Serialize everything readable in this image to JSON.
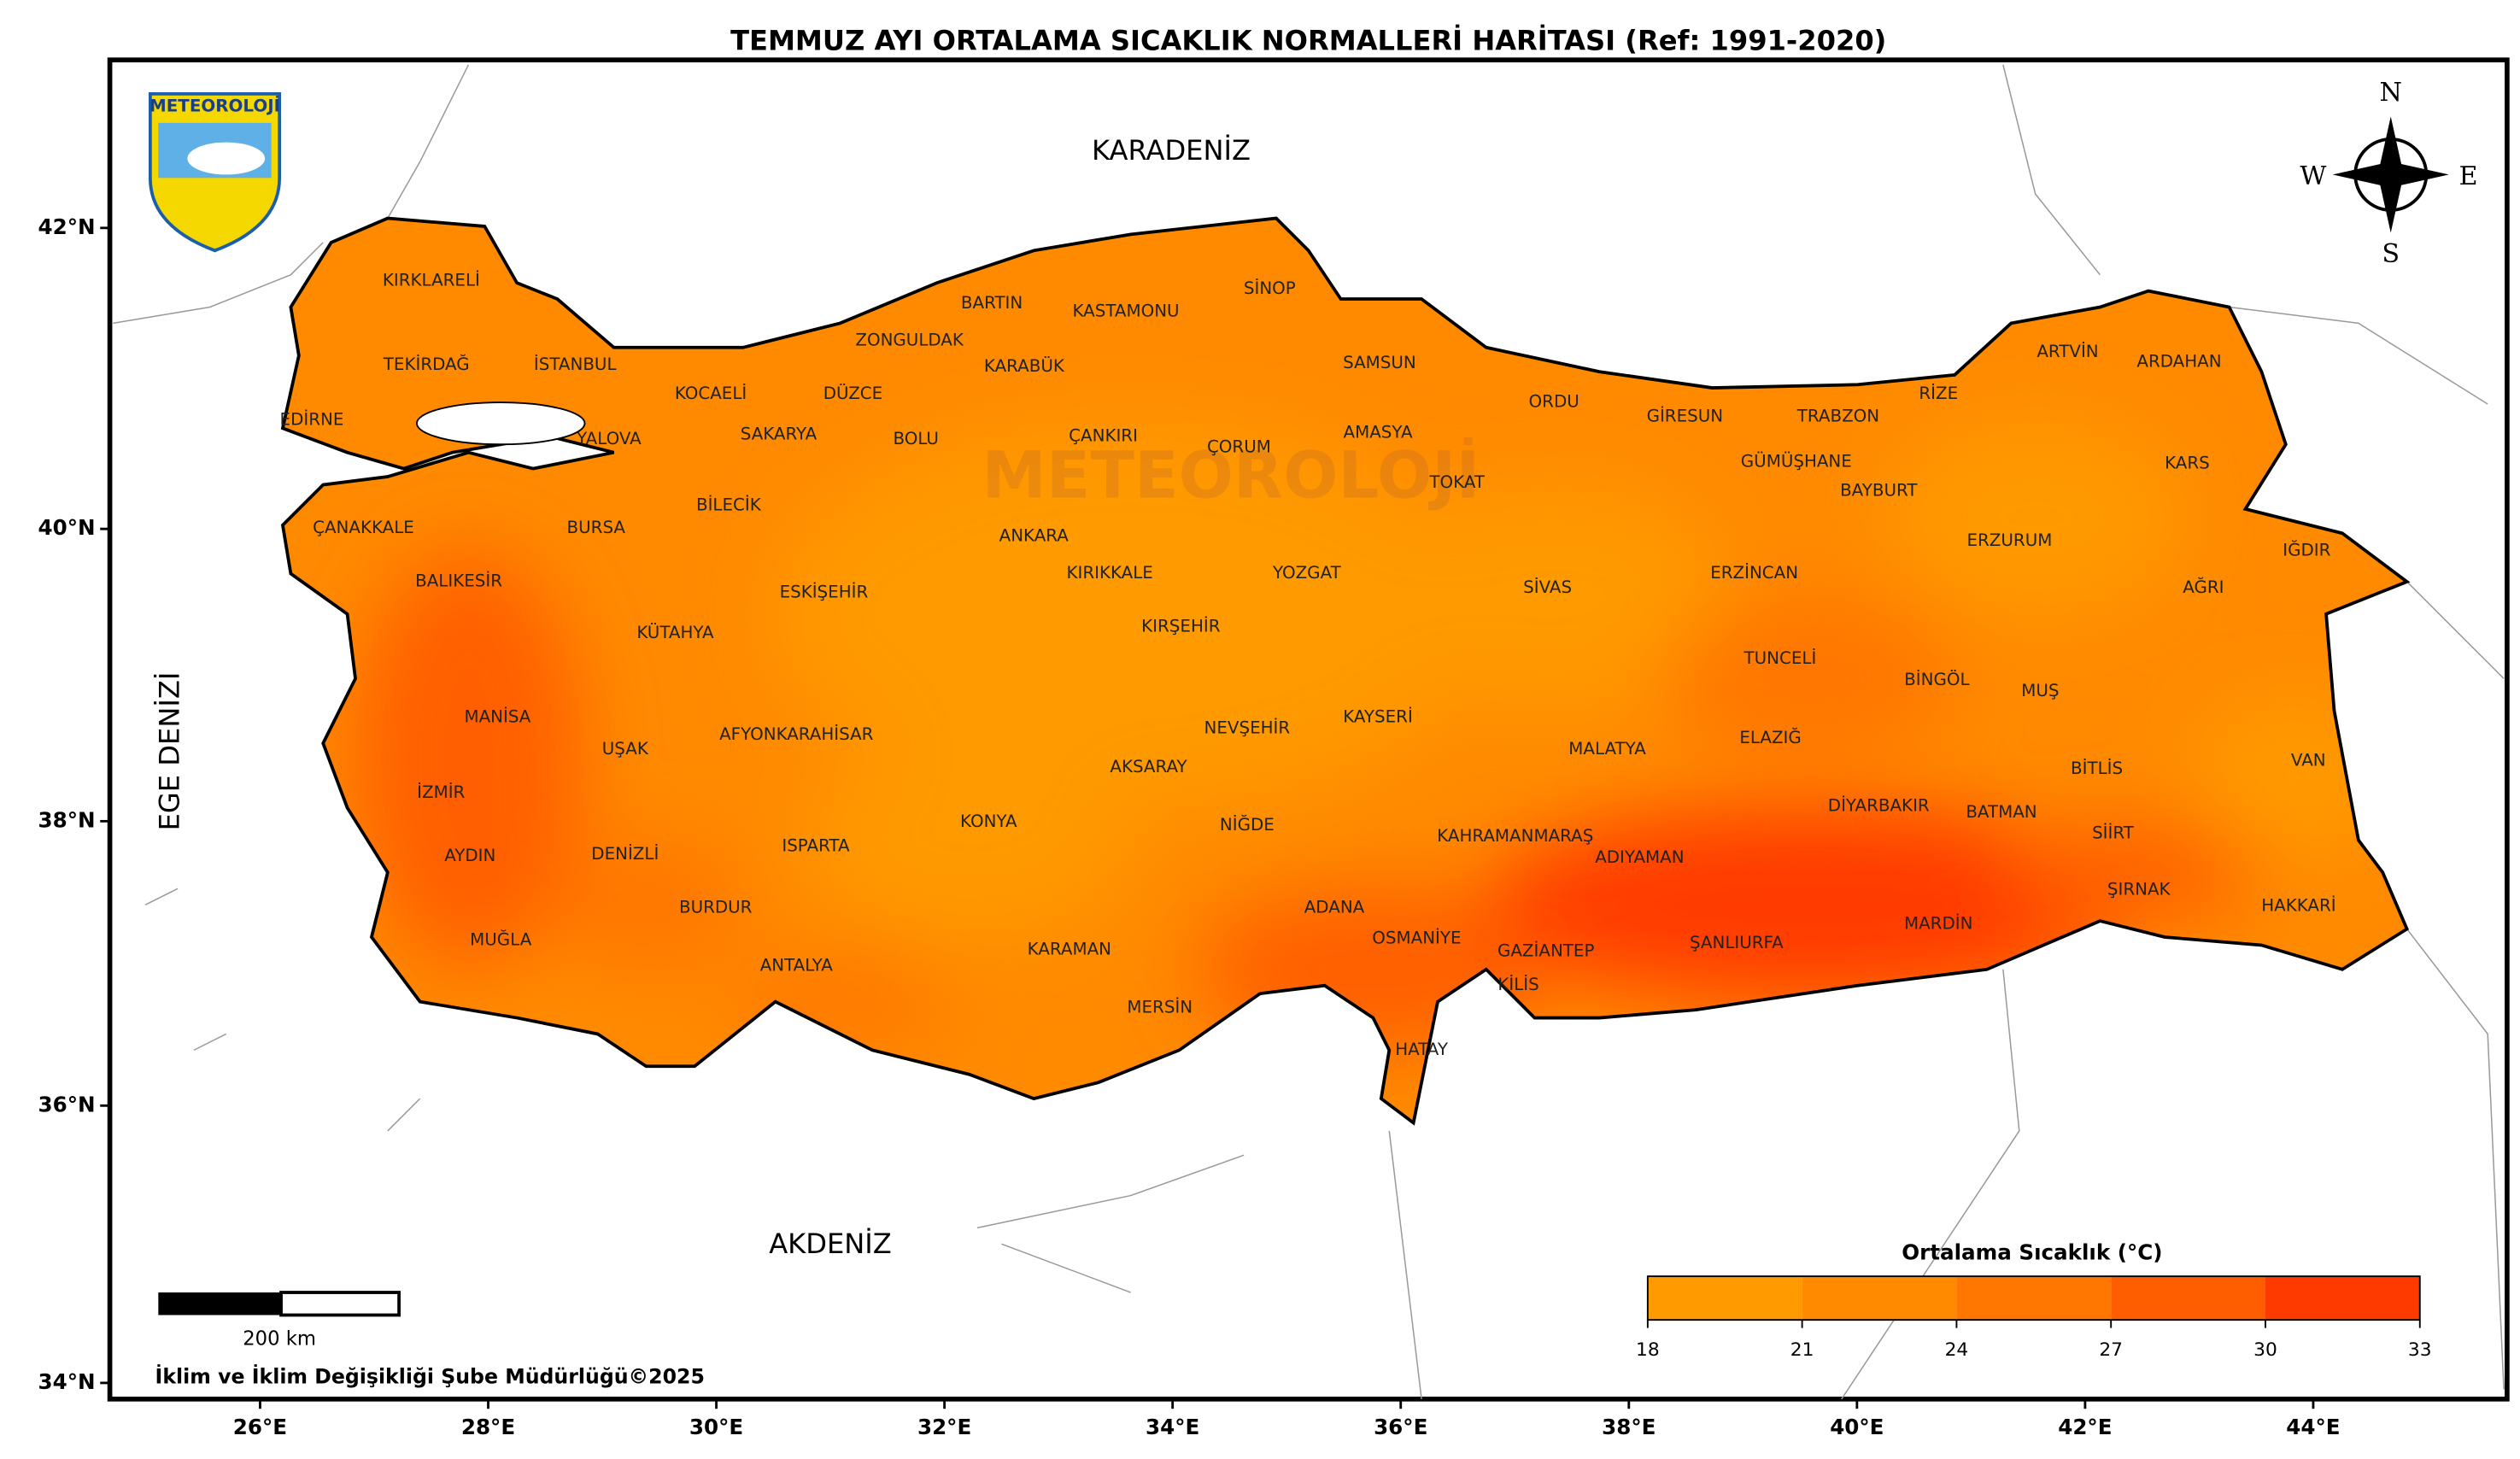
{
  "title": "TEMMUZ AYI ORTALAMA SICAKLIK NORMALLERİ HARİTASI (Ref: 1991-2020)",
  "logo": "METEOROLOJİ",
  "watermark": "METEOROLOJİ",
  "compass": {
    "n": "N",
    "e": "E",
    "s": "S",
    "w": "W"
  },
  "seas": [
    "KARADENİZ",
    "AKDENİZ",
    "EGE DENİZİ"
  ],
  "provinces": [
    "KIRKLARELİ",
    "TEKİRDAĞ",
    "EDİRNE",
    "İSTANBUL",
    "KOCAELİ",
    "YALOVA",
    "SAKARYA",
    "DÜZCE",
    "ZONGULDAK",
    "BARTIN",
    "KARABÜK",
    "KASTAMONU",
    "SİNOP",
    "SAMSUN",
    "ORDU",
    "GİRESUN",
    "TRABZON",
    "RİZE",
    "ARTVİN",
    "ARDAHAN",
    "KARS",
    "IĞDIR",
    "AĞRI",
    "VAN",
    "HAKKARİ",
    "ŞIRNAK",
    "SİİRT",
    "BİTLİS",
    "BATMAN",
    "MUŞ",
    "BİNGÖL",
    "TUNCELİ",
    "ELAZIĞ",
    "ERZİNCAN",
    "ERZURUM",
    "BAYBURT",
    "GÜMÜŞHANE",
    "DİYARBAKIR",
    "MARDİN",
    "ŞANLIURFA",
    "ADIYAMAN",
    "MALATYA",
    "KAHRAMANMARAŞ",
    "GAZİANTEP",
    "KİLİS",
    "OSMANİYE",
    "HATAY",
    "ADANA",
    "MERSİN",
    "NİĞDE",
    "KARAMAN",
    "KONYA",
    "AKSARAY",
    "NEVŞEHİR",
    "KAYSERİ",
    "SİVAS",
    "TOKAT",
    "AMASYA",
    "ÇORUM",
    "YOZGAT",
    "KIRŞEHİR",
    "KIRIKKALE",
    "ÇANKIRI",
    "ANKARA",
    "BOLU",
    "BİLECİK",
    "ESKİŞEHİR",
    "BURSA",
    "ÇANAKKALE",
    "BALIKESİR",
    "KÜTAHYA",
    "AFYONKARAHİSAR",
    "UŞAK",
    "MANİSA",
    "İZMİR",
    "AYDIN",
    "DENİZLİ",
    "MUĞLA",
    "BURDUR",
    "ISPARTA",
    "ANTALYA"
  ],
  "lat_ticks": [
    {
      "value": 42,
      "label": "42°N"
    },
    {
      "value": 40,
      "label": "40°N"
    },
    {
      "value": 38,
      "label": "38°N"
    },
    {
      "value": 36,
      "label": "36°N"
    },
    {
      "value": 34,
      "label": "34°N"
    }
  ],
  "lon_ticks": [
    {
      "value": 26,
      "label": "26°E"
    },
    {
      "value": 28,
      "label": "28°E"
    },
    {
      "value": 30,
      "label": "30°E"
    },
    {
      "value": 32,
      "label": "32°E"
    },
    {
      "value": 34,
      "label": "34°E"
    },
    {
      "value": 36,
      "label": "36°E"
    },
    {
      "value": 38,
      "label": "38°E"
    },
    {
      "value": 40,
      "label": "40°E"
    },
    {
      "value": 42,
      "label": "42°E"
    },
    {
      "value": 44,
      "label": "44°E"
    }
  ],
  "legend": {
    "title": "Ortalama Sıcaklık (°C)",
    "ticks": [
      18,
      21,
      24,
      27,
      30,
      33
    ],
    "colors": [
      "#ff9a00",
      "#ff8a00",
      "#ff7600",
      "#ff5e00",
      "#ff3a00"
    ]
  },
  "scale_bar": "200 km",
  "credit": "İklim ve İklim Değişikliği Şube Müdürlüğü©2025"
}
